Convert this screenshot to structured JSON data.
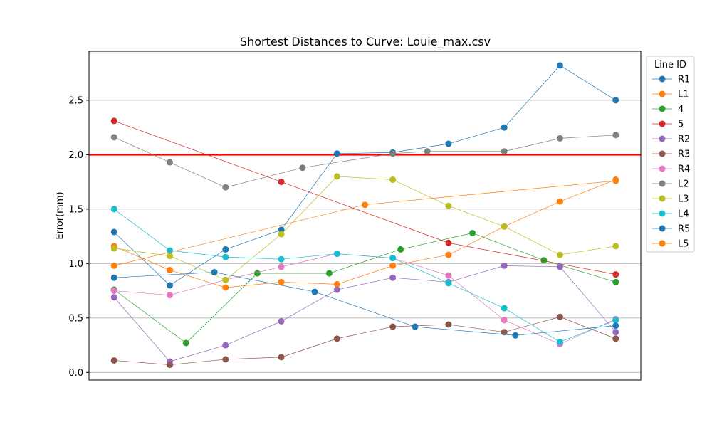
{
  "chart_data": {
    "type": "line",
    "title": "Shortest Distances to Curve: Louie_max.csv",
    "xlabel": "",
    "ylabel": "Error(mm)",
    "xlim": [
      -0.45,
      9.45
    ],
    "ylim": [
      -0.07,
      2.95
    ],
    "yticks": [
      0.0,
      0.5,
      1.0,
      1.5,
      2.0,
      2.5
    ],
    "ytick_labels": [
      "0.0",
      "0.5",
      "1.0",
      "1.5",
      "2.0",
      "2.5"
    ],
    "grid": "horizontal",
    "legend": {
      "title": "Line ID",
      "placement": "outside-right"
    },
    "threshold": {
      "value": 2.0,
      "color": "#ff0000"
    },
    "series": [
      {
        "name": "R1",
        "color": "#1f77b4",
        "x": [
          0,
          1,
          2,
          3,
          4,
          5,
          6,
          7,
          8,
          9
        ],
        "y": [
          1.29,
          0.8,
          1.13,
          1.31,
          2.01,
          2.02,
          2.1,
          2.25,
          2.82,
          2.5
        ]
      },
      {
        "name": "L1",
        "color": "#ff7f0e",
        "x": [
          0,
          1,
          2,
          3,
          4,
          5,
          6,
          7,
          8,
          9
        ],
        "y": [
          1.16,
          0.94,
          0.78,
          0.83,
          0.81,
          0.98,
          1.08,
          1.34,
          1.57,
          1.77
        ]
      },
      {
        "name": "4",
        "color": "#2ca02c",
        "x": [
          0,
          1.29,
          2.57,
          3.86,
          5.14,
          6.43,
          7.71,
          9
        ],
        "y": [
          0.76,
          0.27,
          0.91,
          0.91,
          1.13,
          1.28,
          1.03,
          0.83
        ]
      },
      {
        "name": "5",
        "color": "#d62728",
        "x": [
          0,
          3,
          6,
          9
        ],
        "y": [
          2.31,
          1.75,
          1.19,
          0.9
        ]
      },
      {
        "name": "R2",
        "color": "#9467bd",
        "x": [
          0,
          1,
          2,
          3,
          4,
          5,
          6,
          7,
          8,
          9
        ],
        "y": [
          0.69,
          0.1,
          0.25,
          0.47,
          0.76,
          0.87,
          0.83,
          0.98,
          0.97,
          0.37
        ]
      },
      {
        "name": "R3",
        "color": "#8c564b",
        "x": [
          0,
          1,
          2,
          3,
          4,
          5,
          6,
          7,
          8,
          9
        ],
        "y": [
          0.11,
          0.07,
          0.12,
          0.14,
          0.31,
          0.42,
          0.44,
          0.37,
          0.51,
          0.31
        ]
      },
      {
        "name": "R4",
        "color": "#e377c2",
        "x": [
          0,
          1,
          2,
          3,
          4,
          5,
          6,
          7,
          8,
          9
        ],
        "y": [
          0.75,
          0.71,
          0.85,
          0.97,
          1.09,
          1.05,
          0.89,
          0.48,
          0.26,
          0.49
        ]
      },
      {
        "name": "L2",
        "color": "#7f7f7f",
        "x": [
          0,
          1,
          2,
          3.38,
          5,
          5.62,
          7,
          8,
          9
        ],
        "y": [
          2.16,
          1.93,
          1.7,
          1.88,
          2.01,
          2.03,
          2.03,
          2.15,
          2.18
        ]
      },
      {
        "name": "L3",
        "color": "#bcbd22",
        "x": [
          0,
          1,
          2,
          3,
          4,
          5,
          6,
          7,
          8,
          9
        ],
        "y": [
          1.14,
          1.07,
          0.85,
          1.27,
          1.8,
          1.77,
          1.53,
          1.34,
          1.08,
          1.16
        ]
      },
      {
        "name": "L4",
        "color": "#17becf",
        "x": [
          0,
          1,
          2,
          3,
          4,
          5,
          6,
          7,
          8,
          9
        ],
        "y": [
          1.5,
          1.12,
          1.06,
          1.04,
          1.09,
          1.05,
          0.82,
          0.59,
          0.28,
          0.48
        ]
      },
      {
        "name": "R5",
        "color": "#1f77b4",
        "x": [
          0,
          1.8,
          3.6,
          5.4,
          7.2,
          9
        ],
        "y": [
          0.87,
          0.92,
          0.74,
          0.42,
          0.34,
          0.43
        ]
      },
      {
        "name": "L5",
        "color": "#ff7f0e",
        "x": [
          0,
          4.5,
          9
        ],
        "y": [
          0.98,
          1.54,
          1.76
        ]
      }
    ]
  }
}
